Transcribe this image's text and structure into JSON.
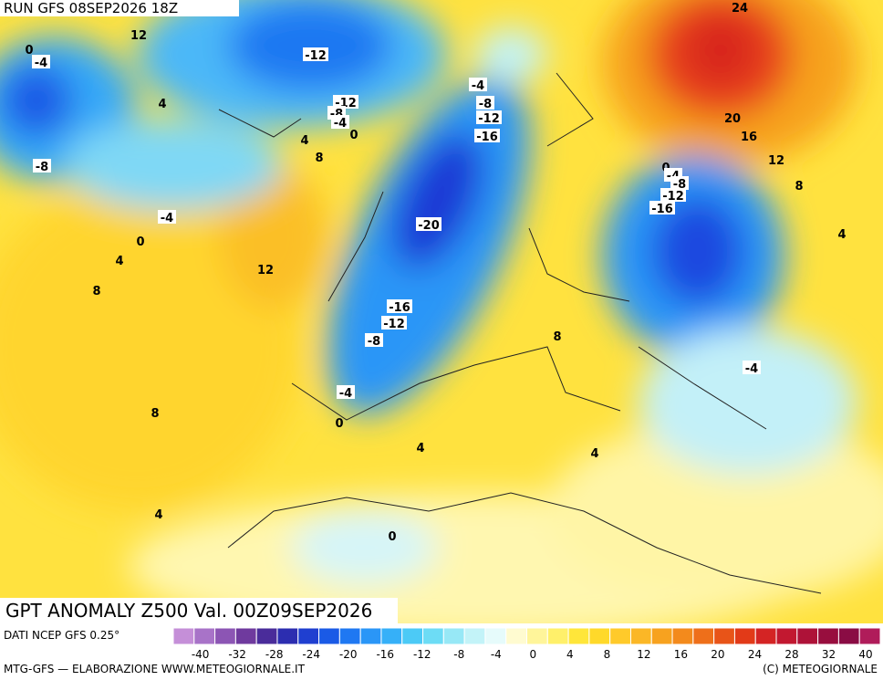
{
  "header": {
    "run": "RUN GFS 08SEP2026 18Z"
  },
  "map": {
    "title": "GPT ANOMALY Z500 Val. 00Z09SEP2026",
    "contour_labels": [
      12,
      0,
      -4,
      4,
      -12,
      -12,
      -8,
      -4,
      0,
      -4,
      -8,
      -12,
      -16,
      4,
      8,
      -8,
      -4,
      0,
      4,
      12,
      8,
      -20,
      -16,
      -12,
      -8,
      -4,
      0,
      8,
      4,
      8,
      4,
      -4,
      4,
      0,
      24,
      20,
      16,
      12,
      8,
      4,
      0,
      -4,
      -8,
      -12,
      -16
    ]
  },
  "colorbar": {
    "source": "DATI NCEP GFS 0.25°",
    "colors": [
      "#c58fd8",
      "#a873c8",
      "#8c55b4",
      "#6f3a9e",
      "#4a2c9a",
      "#2c2db0",
      "#1f3fd0",
      "#1a5ae6",
      "#1f78f2",
      "#2a96f7",
      "#36b0f8",
      "#4ccaf6",
      "#6ddcf5",
      "#97e8f6",
      "#c3f3f8",
      "#e6fbfb",
      "#fffbd0",
      "#fff59a",
      "#fff06a",
      "#ffe63a",
      "#ffd92a",
      "#ffca2a",
      "#fbb726",
      "#f7a21f",
      "#f38a1c",
      "#ee6f1a",
      "#e85418",
      "#e23a18",
      "#d42424",
      "#c21830",
      "#ae1238",
      "#980e3e",
      "#8a0c44",
      "#b01c5a"
    ],
    "labels": [
      "-40",
      "-32",
      "-28",
      "-24",
      "-20",
      "-16",
      "-12",
      "-8",
      "-4",
      "0",
      "4",
      "8",
      "12",
      "16",
      "20",
      "24",
      "28",
      "32",
      "40"
    ]
  },
  "footer": {
    "credit": "MTG-GFS — ELABORAZIONE WWW.METEOGIORNALE.IT",
    "copyright": "(C) METEOGIORNALE"
  }
}
